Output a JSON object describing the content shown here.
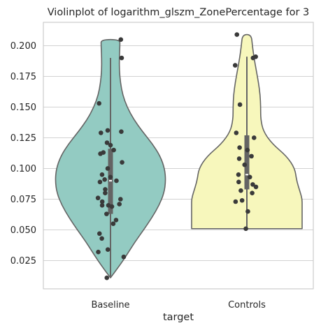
{
  "chart_data": {
    "type": "violin",
    "title": "Violinplot of logarithm_glszm_ZonePercentage for 3",
    "xlabel": "target",
    "ylabel": "",
    "categories": [
      "Baseline",
      "Controls"
    ],
    "ylim": [
      0.002,
      0.219
    ],
    "yticks": [
      0.025,
      0.05,
      0.075,
      0.1,
      0.125,
      0.15,
      0.175,
      0.2
    ],
    "ytick_labels": [
      "0.025",
      "0.050",
      "0.075",
      "0.100",
      "0.125",
      "0.150",
      "0.175",
      "0.200"
    ],
    "grid": "horizontal",
    "colors": {
      "Baseline": "#93cbc2",
      "Controls": "#f7f7bc",
      "outline": "#646464",
      "points": "#3a3a3a",
      "box": "#646464",
      "grid": "#d2d2d2",
      "spine": "#cccccc"
    },
    "series": [
      {
        "category": "Baseline",
        "box": {
          "q1": 0.063,
          "median": 0.09,
          "q3": 0.116,
          "whisker_low": 0.011,
          "whisker_high": 0.19
        },
        "points": [
          0.205,
          0.19,
          0.153,
          0.131,
          0.13,
          0.129,
          0.121,
          0.119,
          0.115,
          0.113,
          0.112,
          0.105,
          0.1,
          0.095,
          0.093,
          0.091,
          0.089,
          0.09,
          0.083,
          0.08,
          0.076,
          0.075,
          0.073,
          0.071,
          0.07,
          0.07,
          0.069,
          0.063,
          0.058,
          0.055,
          0.047,
          0.043,
          0.034,
          0.032,
          0.028,
          0.011
        ],
        "density": [
          [
            0.011,
            0.0
          ],
          [
            0.02,
            0.15
          ],
          [
            0.03,
            0.3
          ],
          [
            0.04,
            0.44
          ],
          [
            0.05,
            0.6
          ],
          [
            0.06,
            0.75
          ],
          [
            0.07,
            0.88
          ],
          [
            0.08,
            0.97
          ],
          [
            0.09,
            1.0
          ],
          [
            0.1,
            0.98
          ],
          [
            0.11,
            0.9
          ],
          [
            0.12,
            0.76
          ],
          [
            0.13,
            0.58
          ],
          [
            0.14,
            0.42
          ],
          [
            0.15,
            0.3
          ],
          [
            0.16,
            0.22
          ],
          [
            0.17,
            0.18
          ],
          [
            0.18,
            0.16
          ],
          [
            0.19,
            0.16
          ],
          [
            0.2,
            0.17
          ],
          [
            0.205,
            0.17
          ]
        ]
      },
      {
        "category": "Controls",
        "box": {
          "q1": 0.083,
          "median": 0.095,
          "q3": 0.127,
          "whisker_low": 0.051,
          "whisker_high": 0.191
        },
        "points": [
          0.209,
          0.191,
          0.19,
          0.184,
          0.152,
          0.129,
          0.125,
          0.117,
          0.115,
          0.11,
          0.108,
          0.103,
          0.095,
          0.093,
          0.089,
          0.087,
          0.085,
          0.082,
          0.08,
          0.074,
          0.073,
          0.065,
          0.051
        ],
        "density": [
          [
            0.051,
            1.0
          ],
          [
            0.06,
            1.0
          ],
          [
            0.065,
            1.0
          ],
          [
            0.07,
            1.0
          ],
          [
            0.075,
            1.0
          ],
          [
            0.08,
            0.97
          ],
          [
            0.09,
            0.9
          ],
          [
            0.1,
            0.87
          ],
          [
            0.11,
            0.72
          ],
          [
            0.12,
            0.46
          ],
          [
            0.13,
            0.3
          ],
          [
            0.14,
            0.25
          ],
          [
            0.15,
            0.25
          ],
          [
            0.16,
            0.24
          ],
          [
            0.17,
            0.21
          ],
          [
            0.18,
            0.17
          ],
          [
            0.19,
            0.13
          ],
          [
            0.2,
            0.1
          ],
          [
            0.209,
            0.08
          ]
        ]
      }
    ]
  }
}
